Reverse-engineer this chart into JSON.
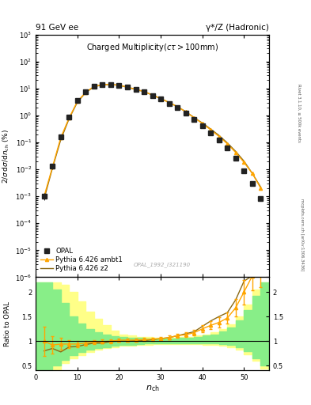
{
  "title_left": "91 GeV ee",
  "title_right": "γ*/Z (Hadronic)",
  "plot_title": "Charged Multiplicity",
  "plot_subtitle": "(cτ > 100mm)",
  "ylabel_main": "2/σ dσ/dn_{ch} (%)",
  "ylabel_ratio": "Ratio to OPAL",
  "xlabel": "n_{ch}",
  "watermark": "OPAL_1992_I321190",
  "right_label": "mcplots.cern.ch [arXiv:1306.3436]",
  "rivet_label": "Rivet 3.1.10, ≥ 500k events",
  "ylim_main": [
    1e-06,
    1000
  ],
  "ylim_ratio": [
    0.4,
    2.3
  ],
  "xlim": [
    0,
    56
  ],
  "opal_x": [
    2,
    4,
    6,
    8,
    10,
    12,
    14,
    16,
    18,
    20,
    22,
    24,
    26,
    28,
    30,
    32,
    34,
    36,
    38,
    40,
    42,
    44,
    46,
    48,
    50,
    52,
    54
  ],
  "opal_y": [
    0.001,
    0.013,
    0.16,
    0.85,
    3.5,
    7.5,
    12,
    14,
    14,
    13,
    11,
    9,
    7.5,
    5.5,
    4,
    2.8,
    1.9,
    1.2,
    0.7,
    0.4,
    0.22,
    0.12,
    0.06,
    0.025,
    0.009,
    0.003,
    0.0008
  ],
  "opal_yerr": [
    0.0003,
    0.003,
    0.02,
    0.08,
    0.2,
    0.4,
    0.5,
    0.5,
    0.5,
    0.4,
    0.3,
    0.2,
    0.2,
    0.15,
    0.1,
    0.08,
    0.06,
    0.04,
    0.03,
    0.02,
    0.012,
    0.007,
    0.003,
    0.0015,
    0.0007,
    0.0003,
    0.0001
  ],
  "pythia_ambt1_x": [
    2,
    4,
    6,
    8,
    10,
    12,
    14,
    16,
    18,
    20,
    22,
    24,
    26,
    28,
    30,
    32,
    34,
    36,
    38,
    40,
    42,
    44,
    46,
    48,
    50,
    52,
    54
  ],
  "pythia_ambt1_y": [
    0.001,
    0.012,
    0.15,
    0.8,
    3.3,
    7.2,
    11.8,
    13.8,
    14.0,
    13.2,
    11.2,
    9.2,
    7.7,
    5.7,
    4.2,
    3.0,
    2.1,
    1.35,
    0.82,
    0.5,
    0.29,
    0.165,
    0.088,
    0.042,
    0.018,
    0.007,
    0.002
  ],
  "pythia_ambt1_yerr": [
    0.0002,
    0.002,
    0.015,
    0.06,
    0.15,
    0.3,
    0.4,
    0.4,
    0.4,
    0.3,
    0.25,
    0.2,
    0.15,
    0.12,
    0.08,
    0.06,
    0.05,
    0.03,
    0.02,
    0.015,
    0.01,
    0.006,
    0.0035,
    0.002,
    0.001,
    0.0004,
    0.0002
  ],
  "pythia_z2_x": [
    2,
    4,
    6,
    8,
    10,
    12,
    14,
    16,
    18,
    20,
    22,
    24,
    26,
    28,
    30,
    32,
    34,
    36,
    38,
    40,
    42,
    44,
    46,
    48,
    50,
    52,
    54
  ],
  "pythia_z2_y": [
    0.0008,
    0.011,
    0.125,
    0.75,
    3.1,
    7.0,
    11.5,
    13.5,
    13.8,
    13.0,
    11.0,
    9.1,
    7.6,
    5.65,
    4.2,
    3.0,
    2.1,
    1.38,
    0.83,
    0.52,
    0.31,
    0.18,
    0.095,
    0.046,
    0.02,
    0.007,
    0.0022
  ],
  "ratio_ambt1_x": [
    2,
    4,
    6,
    8,
    10,
    12,
    14,
    16,
    18,
    20,
    22,
    24,
    26,
    28,
    30,
    32,
    34,
    36,
    38,
    40,
    42,
    44,
    46,
    48,
    50,
    52,
    54
  ],
  "ratio_ambt1_y": [
    1.0,
    0.92,
    0.94,
    0.94,
    0.94,
    0.96,
    0.98,
    0.99,
    1.0,
    1.02,
    1.02,
    1.02,
    1.03,
    1.04,
    1.05,
    1.07,
    1.11,
    1.13,
    1.17,
    1.25,
    1.32,
    1.38,
    1.47,
    1.68,
    2.0,
    2.33,
    2.5
  ],
  "ratio_ambt1_yerr": [
    0.3,
    0.18,
    0.12,
    0.08,
    0.06,
    0.05,
    0.04,
    0.04,
    0.04,
    0.03,
    0.03,
    0.03,
    0.03,
    0.03,
    0.03,
    0.04,
    0.04,
    0.05,
    0.06,
    0.07,
    0.08,
    0.1,
    0.12,
    0.18,
    0.25,
    0.3,
    0.4
  ],
  "ratio_z2_x": [
    2,
    4,
    6,
    8,
    10,
    12,
    14,
    16,
    18,
    20,
    22,
    24,
    26,
    28,
    30,
    32,
    34,
    36,
    38,
    40,
    42,
    44,
    46,
    48,
    50,
    52,
    54
  ],
  "ratio_z2_y": [
    0.8,
    0.85,
    0.78,
    0.88,
    0.89,
    0.93,
    0.96,
    0.96,
    0.99,
    1.0,
    1.0,
    1.01,
    1.01,
    1.03,
    1.05,
    1.07,
    1.11,
    1.15,
    1.19,
    1.3,
    1.41,
    1.5,
    1.58,
    1.84,
    2.22,
    2.33,
    2.75
  ],
  "band_yellow_edges": [
    0,
    2,
    4,
    6,
    8,
    10,
    12,
    14,
    16,
    18,
    20,
    22,
    24,
    26,
    28,
    30,
    32,
    34,
    36,
    38,
    40,
    42,
    44,
    46,
    48,
    50,
    52,
    54,
    56
  ],
  "band_yellow_low": [
    0.42,
    0.42,
    0.42,
    0.55,
    0.65,
    0.72,
    0.78,
    0.83,
    0.86,
    0.88,
    0.9,
    0.91,
    0.92,
    0.93,
    0.94,
    0.94,
    0.94,
    0.94,
    0.94,
    0.94,
    0.93,
    0.92,
    0.9,
    0.87,
    0.82,
    0.73,
    0.6,
    0.44,
    0.42
  ],
  "band_yellow_high": [
    2.2,
    2.2,
    2.2,
    2.15,
    2.0,
    1.8,
    1.6,
    1.45,
    1.32,
    1.22,
    1.14,
    1.11,
    1.09,
    1.08,
    1.07,
    1.07,
    1.07,
    1.08,
    1.09,
    1.11,
    1.14,
    1.18,
    1.24,
    1.34,
    1.5,
    1.75,
    2.05,
    2.2,
    2.2
  ],
  "band_green_edges": [
    0,
    2,
    4,
    6,
    8,
    10,
    12,
    14,
    16,
    18,
    20,
    22,
    24,
    26,
    28,
    30,
    32,
    34,
    36,
    38,
    40,
    42,
    44,
    46,
    48,
    50,
    52,
    54,
    56
  ],
  "band_green_low": [
    0.42,
    0.42,
    0.5,
    0.62,
    0.72,
    0.78,
    0.83,
    0.86,
    0.88,
    0.9,
    0.92,
    0.93,
    0.94,
    0.95,
    0.95,
    0.96,
    0.96,
    0.96,
    0.96,
    0.96,
    0.95,
    0.95,
    0.94,
    0.92,
    0.88,
    0.8,
    0.65,
    0.5,
    0.42
  ],
  "band_green_high": [
    2.2,
    2.2,
    2.05,
    1.78,
    1.5,
    1.35,
    1.24,
    1.18,
    1.13,
    1.1,
    1.08,
    1.07,
    1.06,
    1.05,
    1.05,
    1.05,
    1.05,
    1.06,
    1.07,
    1.09,
    1.11,
    1.14,
    1.2,
    1.28,
    1.42,
    1.63,
    1.92,
    2.2,
    2.2
  ],
  "opal_color": "#222222",
  "ambt1_color": "#FFA500",
  "z2_color": "#8B6914",
  "band_yellow_color": "#FFFF88",
  "band_green_color": "#88EE88"
}
